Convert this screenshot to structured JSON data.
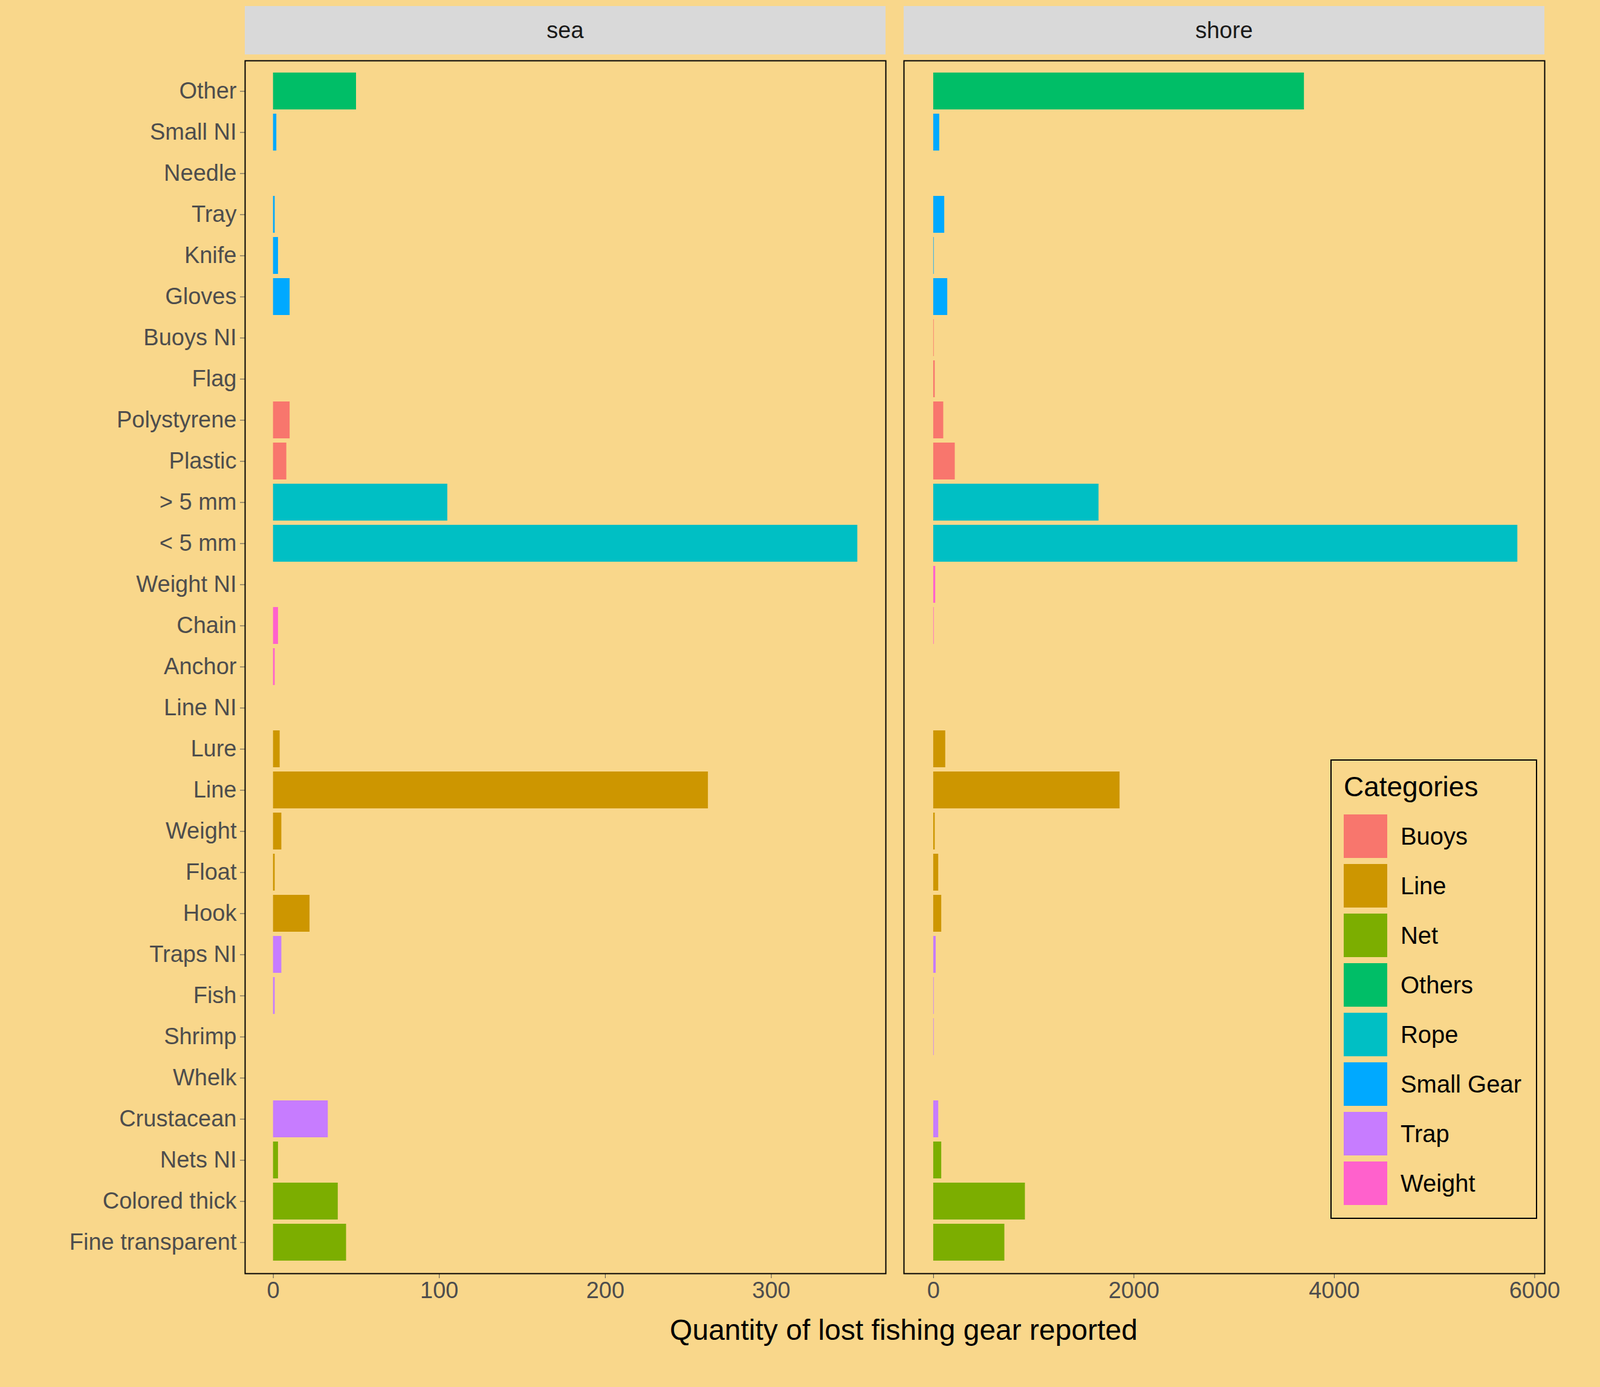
{
  "chart_data": {
    "type": "bar",
    "orientation": "horizontal",
    "xlabel": "Quantity of lost fishing gear reported",
    "legend_title": "Categories",
    "legend": "bottom-right",
    "categories": [
      "Other",
      "Small NI",
      "Needle",
      "Tray",
      "Knife",
      "Gloves",
      "Buoys NI",
      "Flag",
      "Polystyrene",
      "Plastic",
      "> 5 mm",
      "< 5 mm",
      "Weight NI",
      "Chain",
      "Anchor",
      "Line NI",
      "Lure",
      "Line",
      "Weight",
      "Float",
      "Hook",
      "Traps NI",
      "Fish",
      "Shrimp",
      "Whelk",
      "Crustacean",
      "Nets NI",
      "Colored thick",
      "Fine transparent"
    ],
    "groups": [
      "Others",
      "Small Gear",
      "Small Gear",
      "Small Gear",
      "Small Gear",
      "Small Gear",
      "Buoys",
      "Buoys",
      "Buoys",
      "Buoys",
      "Rope",
      "Rope",
      "Weight",
      "Weight",
      "Weight",
      "Line",
      "Line",
      "Line",
      "Line",
      "Line",
      "Line",
      "Trap",
      "Trap",
      "Trap",
      "Trap",
      "Trap",
      "Net",
      "Net",
      "Net"
    ],
    "series": [
      {
        "name": "Buoys",
        "color": "#F8766D"
      },
      {
        "name": "Line",
        "color": "#CD9600"
      },
      {
        "name": "Net",
        "color": "#7CAE00"
      },
      {
        "name": "Others",
        "color": "#00BE67"
      },
      {
        "name": "Rope",
        "color": "#00BFC4"
      },
      {
        "name": "Small Gear",
        "color": "#00A9FF"
      },
      {
        "name": "Trap",
        "color": "#C77CFF"
      },
      {
        "name": "Weight",
        "color": "#FF61CC"
      }
    ],
    "panels": [
      {
        "title": "sea",
        "values": [
          50,
          2,
          0,
          1,
          3,
          10,
          0,
          0,
          10,
          8,
          105,
          352,
          0,
          3,
          1,
          0,
          4,
          262,
          5,
          1,
          22,
          5,
          1,
          0,
          0,
          33,
          3,
          39,
          44
        ],
        "xlim": [
          -17,
          369
        ],
        "xticks": [
          0,
          100,
          200,
          300
        ]
      },
      {
        "title": "shore",
        "values": [
          3700,
          60,
          0,
          110,
          5,
          140,
          5,
          15,
          100,
          215,
          1650,
          5830,
          20,
          5,
          0,
          0,
          120,
          1860,
          15,
          50,
          80,
          25,
          5,
          5,
          0,
          50,
          80,
          915,
          710
        ],
        "xlim": [
          -295,
          6100
        ],
        "xticks": [
          0,
          2000,
          4000,
          6000
        ]
      }
    ]
  }
}
